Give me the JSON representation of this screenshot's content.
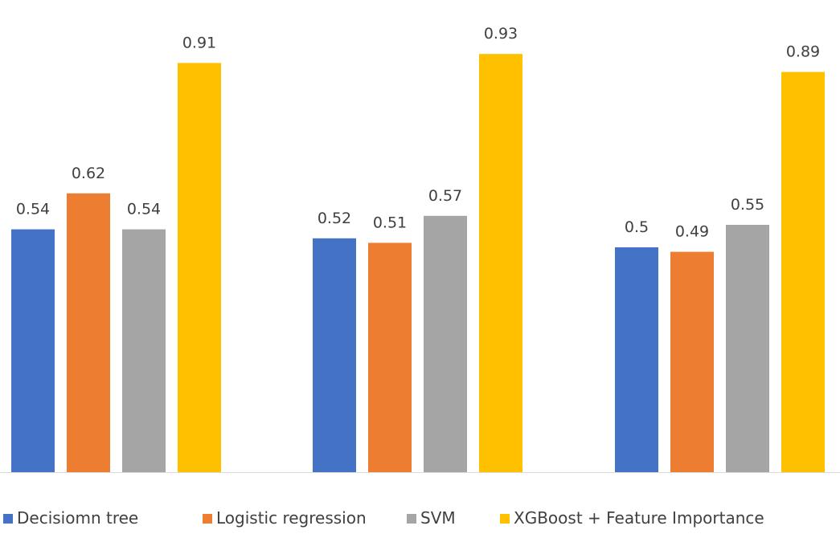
{
  "chart_data": {
    "type": "bar",
    "title": "",
    "xlabel": "",
    "ylabel": "",
    "categories": [
      "",
      "",
      ""
    ],
    "ylim": [
      0,
      1
    ],
    "grid": false,
    "legend_position": "bottom",
    "series": [
      {
        "name": "Decisiomn tree",
        "color": "#4472C4",
        "values": [
          0.54,
          0.52,
          0.5
        ]
      },
      {
        "name": "Logistic regression",
        "color": "#ED7D31",
        "values": [
          0.62,
          0.51,
          0.49
        ]
      },
      {
        "name": "SVM",
        "color": "#A5A5A5",
        "values": [
          0.54,
          0.57,
          0.55
        ]
      },
      {
        "name": "XGBoost + Feature Importance",
        "color": "#FFC000",
        "values": [
          0.91,
          0.93,
          0.89
        ]
      }
    ]
  }
}
